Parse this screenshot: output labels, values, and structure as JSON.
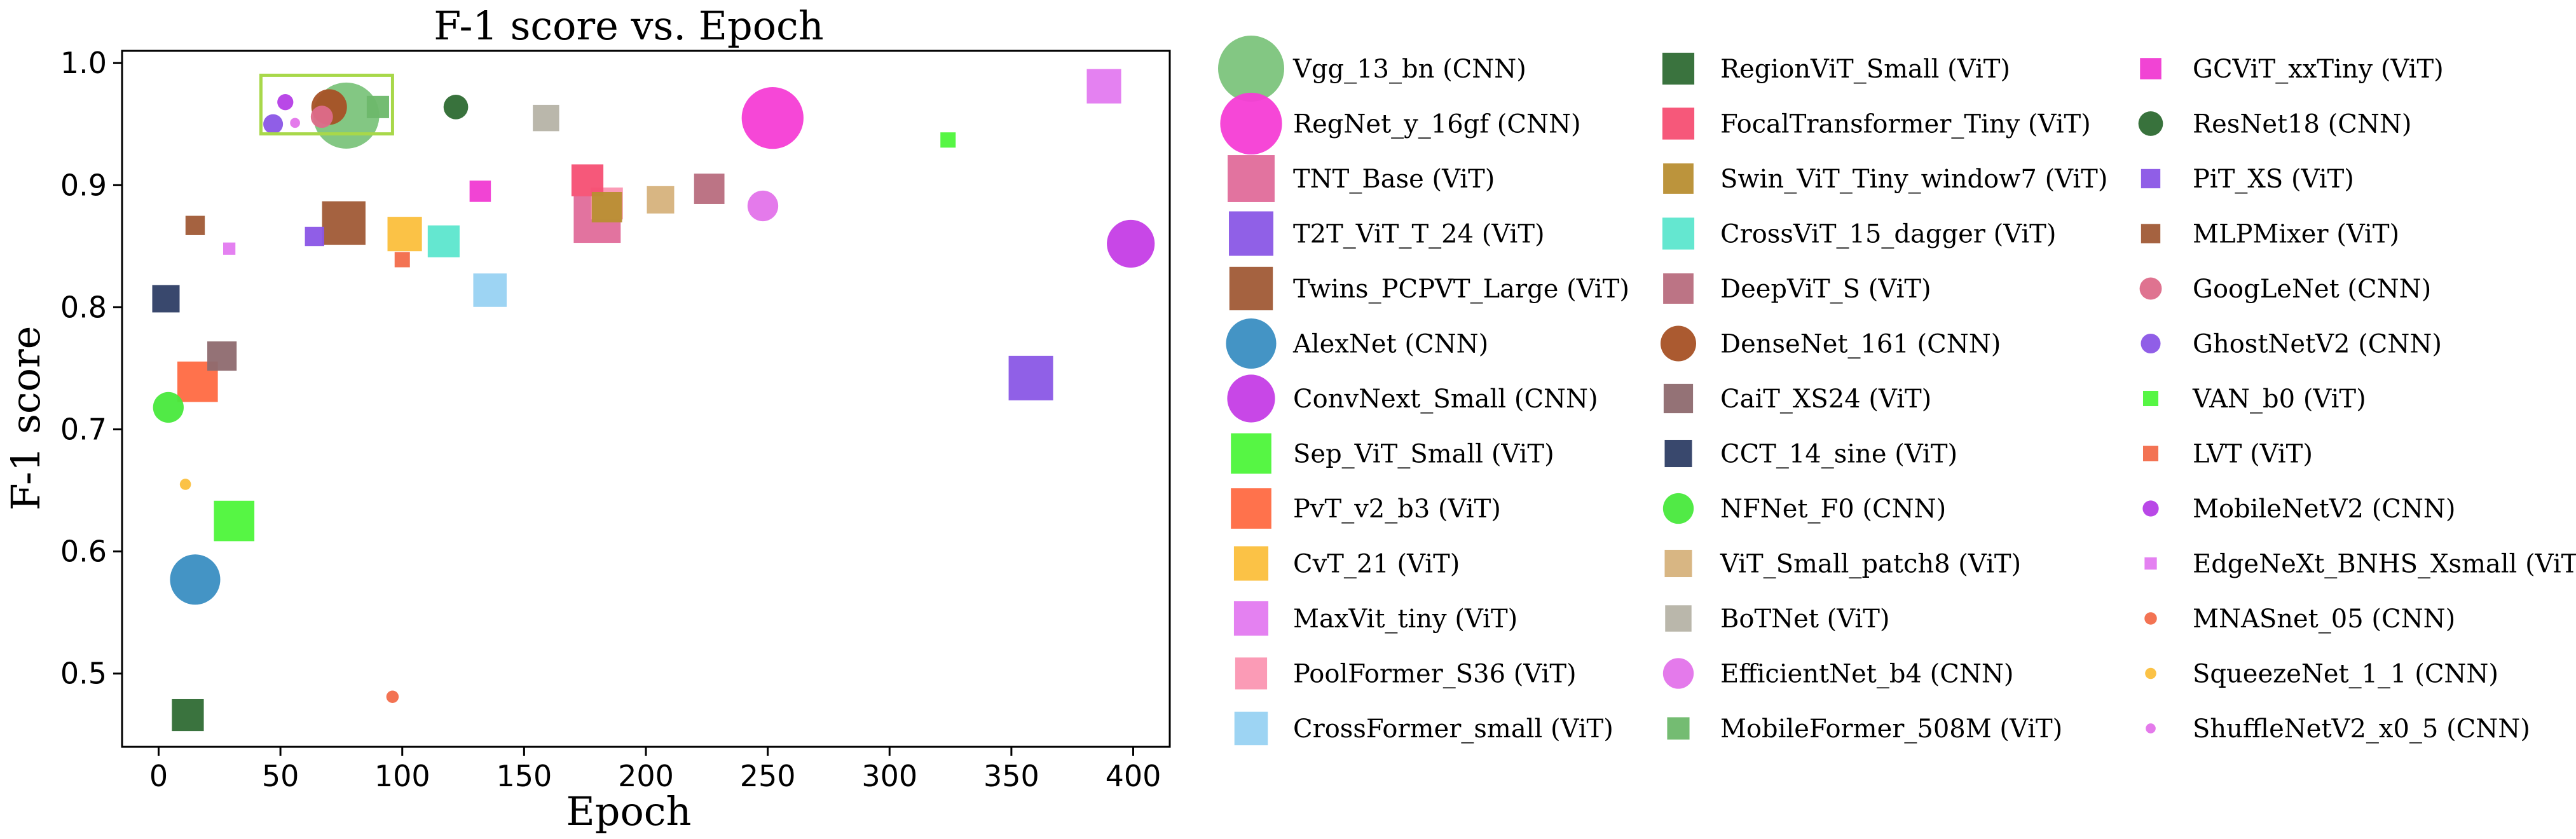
{
  "chart_data": {
    "type": "scatter",
    "title": "F-1 score vs. Epoch",
    "xlabel": "Epoch",
    "ylabel": "F-1 score",
    "xlim": [
      -15,
      415
    ],
    "ylim": [
      0.44,
      1.01
    ],
    "xticks": [
      0,
      50,
      100,
      150,
      200,
      250,
      300,
      350,
      400
    ],
    "yticks": [
      0.5,
      0.6,
      0.7,
      0.8,
      0.9,
      1.0
    ],
    "ytick_labels": [
      "0.5",
      "0.6",
      "0.7",
      "0.8",
      "0.9",
      "1.0"
    ],
    "highlight_box": {
      "x": [
        42,
        96
      ],
      "y": [
        0.942,
        0.99
      ],
      "color": "#a8d84a"
    },
    "legend_position": "outside-right",
    "series": [
      {
        "name": "Vgg_13_bn (CNN)",
        "marker": "circle",
        "color": "#7cc47c",
        "size": 1.0,
        "x": 77,
        "y": 0.957
      },
      {
        "name": "RegNet_y_16gf (CNN)",
        "marker": "circle",
        "color": "#f53dd5",
        "size": 0.93,
        "x": 252,
        "y": 0.955
      },
      {
        "name": "TNT_Base (ViT)",
        "marker": "square",
        "color": "#e06c9a",
        "size": 0.85,
        "x": 180,
        "y": 0.872
      },
      {
        "name": "T2T_ViT_T_24 (ViT)",
        "marker": "square",
        "color": "#8a57e6",
        "size": 0.8,
        "x": 358,
        "y": 0.742
      },
      {
        "name": "Twins_PCPVT_Large (ViT)",
        "marker": "square",
        "color": "#a05a36",
        "size": 0.78,
        "x": 76,
        "y": 0.869
      },
      {
        "name": "AlexNet (CNN)",
        "marker": "circle",
        "color": "#3a8ec2",
        "size": 0.74,
        "x": 15,
        "y": 0.577
      },
      {
        "name": "ConvNext_Small (CNN)",
        "marker": "circle",
        "color": "#c53de6",
        "size": 0.7,
        "x": 399,
        "y": 0.852
      },
      {
        "name": "Sep_ViT_Small (ViT)",
        "marker": "square",
        "color": "#4df53a",
        "size": 0.72,
        "x": 31,
        "y": 0.625
      },
      {
        "name": "PvT_v2_b3 (ViT)",
        "marker": "square",
        "color": "#ff6a42",
        "size": 0.72,
        "x": 16,
        "y": 0.739
      },
      {
        "name": "CvT_21 (ViT)",
        "marker": "square",
        "color": "#fbbf3c",
        "size": 0.6,
        "x": 101,
        "y": 0.86
      },
      {
        "name": "MaxVit_tiny (ViT)",
        "marker": "square",
        "color": "#e37af0",
        "size": 0.6,
        "x": 388,
        "y": 0.981
      },
      {
        "name": "PoolFormer_S36 (ViT)",
        "marker": "square",
        "color": "#fb96b2",
        "size": 0.55,
        "x": 184,
        "y": 0.885
      },
      {
        "name": "CrossFormer_small (ViT)",
        "marker": "square",
        "color": "#98d2f2",
        "size": 0.58,
        "x": 136,
        "y": 0.814
      },
      {
        "name": "RegionViT_Small (ViT)",
        "marker": "square",
        "color": "#2f6b34",
        "size": 0.55,
        "x": 12,
        "y": 0.466
      },
      {
        "name": "FocalTransformer_Tiny (ViT)",
        "marker": "square",
        "color": "#f64f73",
        "size": 0.55,
        "x": 176,
        "y": 0.904
      },
      {
        "name": "Swin_ViT_Tiny_window7 (ViT)",
        "marker": "square",
        "color": "#b88e32",
        "size": 0.52,
        "x": 184,
        "y": 0.882
      },
      {
        "name": "CrossViT_15_dagger (ViT)",
        "marker": "square",
        "color": "#5ce6ce",
        "size": 0.55,
        "x": 117,
        "y": 0.854
      },
      {
        "name": "DeepViT_S (ViT)",
        "marker": "square",
        "color": "#b86d7e",
        "size": 0.52,
        "x": 226,
        "y": 0.897
      },
      {
        "name": "DenseNet_161 (CNN)",
        "marker": "circle",
        "color": "#a65125",
        "size": 0.5,
        "x": 70,
        "y": 0.964
      },
      {
        "name": "CaiT_XS24 (ViT)",
        "marker": "square",
        "color": "#8e6a6f",
        "size": 0.5,
        "x": 26,
        "y": 0.76
      },
      {
        "name": "CCT_14_sine (ViT)",
        "marker": "square",
        "color": "#2e3e65",
        "size": 0.46,
        "x": 3,
        "y": 0.807
      },
      {
        "name": "NFNet_F0 (CNN)",
        "marker": "circle",
        "color": "#48e93c",
        "size": 0.42,
        "x": 4,
        "y": 0.718
      },
      {
        "name": "ViT_Small_patch8 (ViT)",
        "marker": "square",
        "color": "#d6b27c",
        "size": 0.46,
        "x": 206,
        "y": 0.888
      },
      {
        "name": "BoTNet (ViT)",
        "marker": "square",
        "color": "#b6b3a6",
        "size": 0.44,
        "x": 159,
        "y": 0.955
      },
      {
        "name": "EfficientNet_b4 (CNN)",
        "marker": "circle",
        "color": "#e373ea",
        "size": 0.42,
        "x": 248,
        "y": 0.883
      },
      {
        "name": "MobileFormer_508M (ViT)",
        "marker": "square",
        "color": "#6db86a",
        "size": 0.36,
        "x": 90,
        "y": 0.964
      },
      {
        "name": "GCViT_xxTiny (ViT)",
        "marker": "square",
        "color": "#f03ad2",
        "size": 0.34,
        "x": 132,
        "y": 0.895
      },
      {
        "name": "ResNet18 (CNN)",
        "marker": "circle",
        "color": "#2d6a32",
        "size": 0.32,
        "x": 122,
        "y": 0.964
      },
      {
        "name": "PiT_XS (ViT)",
        "marker": "square",
        "color": "#8a55e6",
        "size": 0.3,
        "x": 64,
        "y": 0.858
      },
      {
        "name": "MLPMixer (ViT)",
        "marker": "square",
        "color": "#a05a36",
        "size": 0.3,
        "x": 15,
        "y": 0.867
      },
      {
        "name": "GoogLeNet (CNN)",
        "marker": "circle",
        "color": "#dd6b8a",
        "size": 0.28,
        "x": 67,
        "y": 0.956
      },
      {
        "name": "GhostNetV2 (CNN)",
        "marker": "circle",
        "color": "#8a55e6",
        "size": 0.24,
        "x": 47,
        "y": 0.95
      },
      {
        "name": "VAN_b0 (ViT)",
        "marker": "square",
        "color": "#4df53a",
        "size": 0.22,
        "x": 324,
        "y": 0.937
      },
      {
        "name": "LVT (ViT)",
        "marker": "square",
        "color": "#f26b4a",
        "size": 0.22,
        "x": 100,
        "y": 0.839
      },
      {
        "name": "MobileNetV2 (CNN)",
        "marker": "circle",
        "color": "#b53ee6",
        "size": 0.18,
        "x": 52,
        "y": 0.968
      },
      {
        "name": "EdgeNeXt_BNHS_Xsmall (ViT)",
        "marker": "square",
        "color": "#e37af0",
        "size": 0.16,
        "x": 29,
        "y": 0.848
      },
      {
        "name": "MNASnet_05 (CNN)",
        "marker": "circle",
        "color": "#f26b4a",
        "size": 0.12,
        "x": 96,
        "y": 0.481
      },
      {
        "name": "SqueezeNet_1_1 (CNN)",
        "marker": "circle",
        "color": "#fbbf3c",
        "size": 0.1,
        "x": 11,
        "y": 0.655
      },
      {
        "name": "ShuffleNetV2_x0_5 (CNN)",
        "marker": "circle",
        "color": "#e373ea",
        "size": 0.08,
        "x": 56,
        "y": 0.951
      }
    ]
  }
}
